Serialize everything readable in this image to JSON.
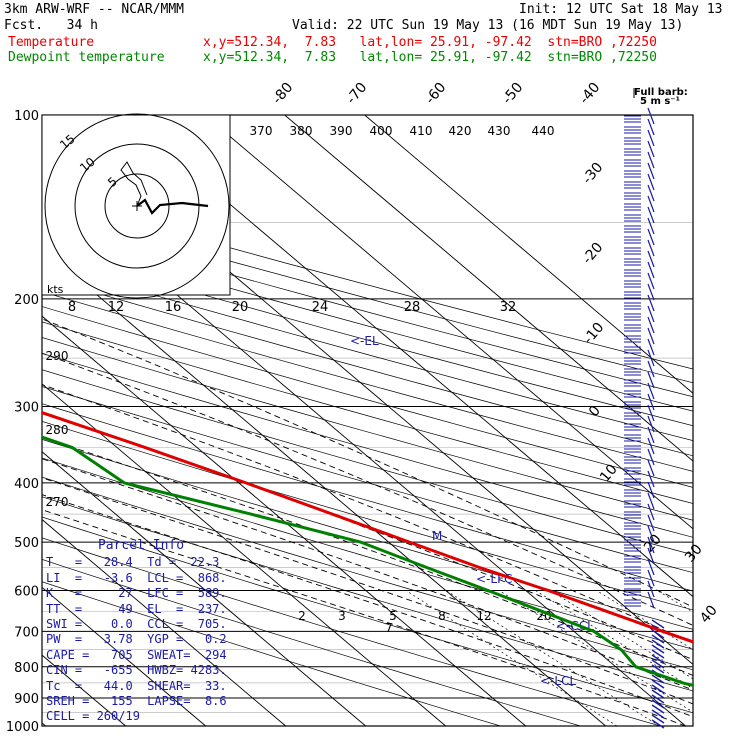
{
  "header": {
    "model": "3km ARW-WRF -- NCAR/MMM",
    "init": "Init: 12 UTC Sat 18 May 13",
    "fcst": "Fcst.   34 h",
    "valid": "Valid: 22 UTC Sun 19 May 13 (16 MDT Sun 19 May 13)",
    "temp_label": "Temperature",
    "temp_info": "x,y=512.34,  7.83   lat,lon= 25.91, -97.42  stn=BRO ,72250",
    "dew_label": "Dewpoint temperature",
    "dew_info": "x,y=512.34,  7.83   lat,lon= 25.91, -97.42  stn=BRO ,72250"
  },
  "barb_legend": {
    "line1": "Full barb:",
    "line2": "5 m s⁻¹"
  },
  "hodograph": {
    "units": "kts",
    "ring_labels": [
      "5",
      "10",
      "15"
    ],
    "speed_labels": [
      "8",
      "12",
      "16",
      "20",
      "24",
      "28",
      "32"
    ]
  },
  "pressure_labels": [
    "100",
    "200",
    "300",
    "400",
    "500",
    "600",
    "700",
    "800",
    "900",
    "1000"
  ],
  "isotherm_labels": [
    "-80",
    "-70",
    "-60",
    "-50",
    "-40",
    "-30",
    "-20",
    "-10",
    "0",
    "10",
    "20",
    "30",
    "40"
  ],
  "theta_labels": [
    "370",
    "380",
    "390",
    "400",
    "410",
    "420",
    "430",
    "440",
    "290",
    "280",
    "270"
  ],
  "mixing_ratio_labels": [
    "2",
    "3",
    "5",
    "7",
    "8",
    "12",
    "20"
  ],
  "level_markers": {
    "el": "<-EL",
    "lfc": "<-LFC",
    "ccl": "<-CCL",
    "lcl": "<-LCL",
    "m": "M"
  },
  "parcel_info": {
    "title": "Parcel Info",
    "rows": [
      "T   =   28.4  Td =  22.3",
      "LI  =   -3.6  LCL =  868.",
      "K   =     27  LFC =  589.",
      "TT  =     49  EL  =  237.",
      "SWI =    0.0  CCL =  705.",
      "PW  =   3.78  YGP =   0.2",
      "CAPE =   705  SWEAT=  294",
      "CIN =   -655  HWBZ= 4283.",
      "Tc  =   44.0  SHEAR=  33.",
      "SREH =   155  LAPSE=  8.6",
      "CELL = 260/19"
    ]
  },
  "colors": {
    "temperature": "#e00000",
    "dewpoint": "#008000",
    "info": "#1a1aa8",
    "grid": "#000000"
  },
  "chart_data": {
    "type": "line",
    "chart_kind": "skew-T log-P sounding",
    "yscale": "log",
    "ylim": [
      1000,
      100
    ],
    "ylabel": "",
    "xlabel": "",
    "series": [
      {
        "name": "Temperature",
        "pressure": [
          1000,
          975,
          950,
          925,
          900,
          850,
          800,
          750,
          700,
          650,
          600,
          550,
          500,
          450,
          400,
          350,
          300,
          250,
          200,
          175,
          150,
          125,
          100
        ],
        "temp_c": [
          28.4,
          26.5,
          25.1,
          23.5,
          22.6,
          21.0,
          18.5,
          15.0,
          11.1,
          7.1,
          2.8,
          -2.4,
          -7.4,
          -12.9,
          -19.1,
          -26.5,
          -35.6,
          -46.8,
          -55.3,
          -64.5,
          -68.0,
          -70.0,
          -76.0
        ]
      },
      {
        "name": "Dewpoint temperature",
        "pressure": [
          1000,
          975,
          950,
          925,
          900,
          850,
          800,
          750,
          700,
          650,
          600,
          550,
          500,
          450,
          400,
          350,
          300,
          250,
          200,
          175,
          150,
          125,
          100
        ],
        "temp_c": [
          22.3,
          21.8,
          14.6,
          12.3,
          11.5,
          6.0,
          2.5,
          3.2,
          2.5,
          -1.0,
          -4.7,
          -9.0,
          -13.5,
          -23.1,
          -34.3,
          -35.6,
          -44.5,
          -67.9,
          -70.2,
          -74.6,
          -78.6,
          -79.5,
          -82.6
        ]
      }
    ]
  }
}
